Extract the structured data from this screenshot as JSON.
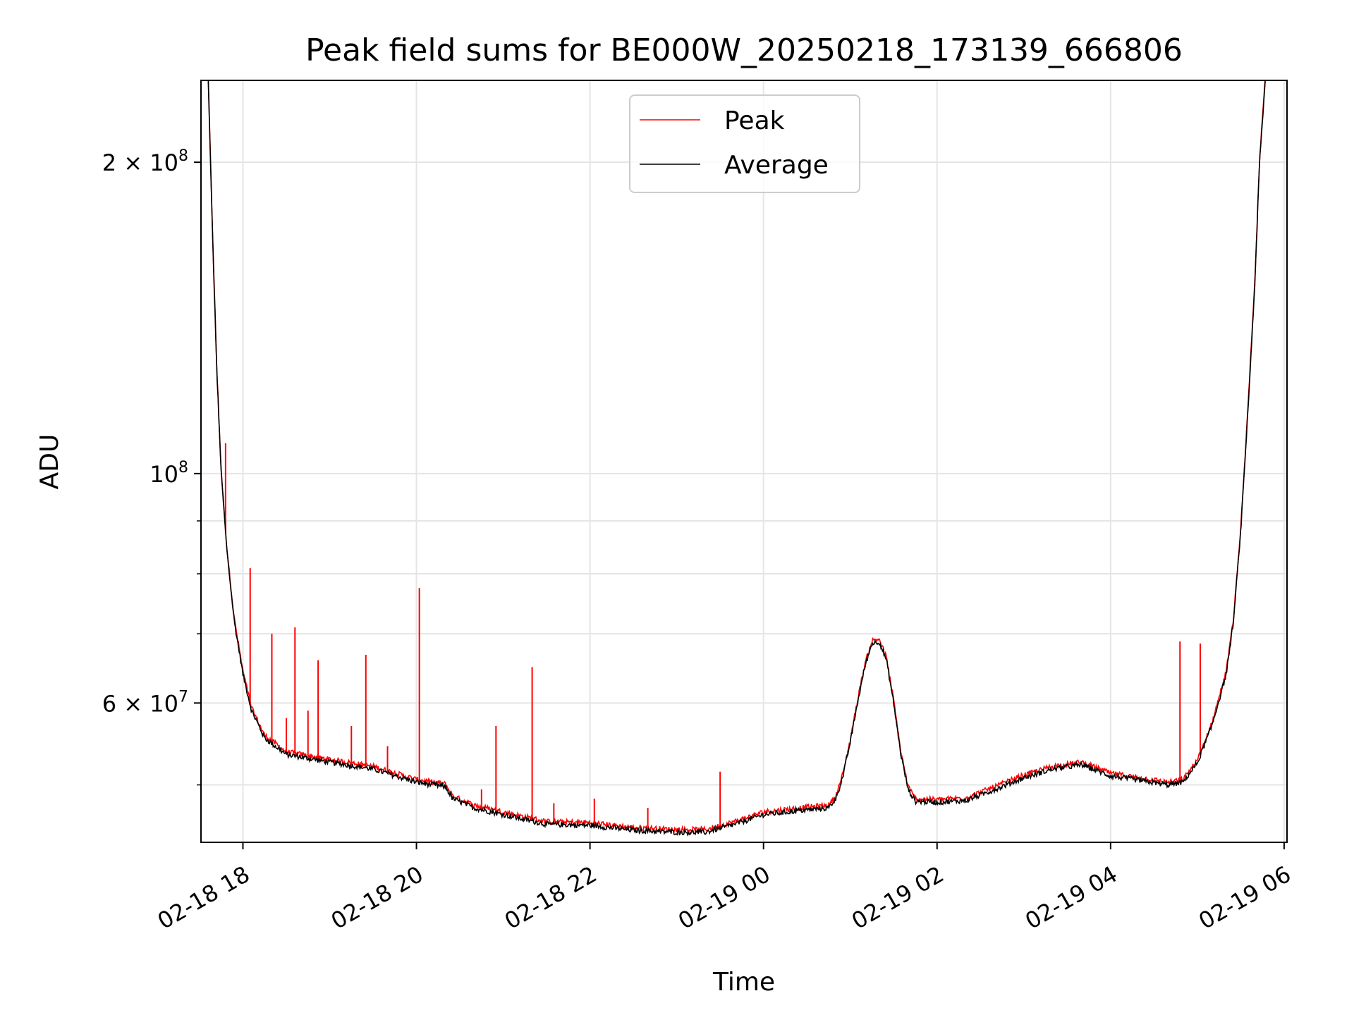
{
  "chart_data": {
    "type": "line",
    "title": "Peak field sums for BE000W_20250218_173139_666806",
    "xlabel": "Time",
    "ylabel": "ADU",
    "yscale": "log",
    "grid": true,
    "legend_placement": "upper center",
    "x_range": [
      "2025-02-18T17:31",
      "2025-02-19T06:02"
    ],
    "y_range": [
      44000000,
      240000000
    ],
    "x_ticks": [
      {
        "label": "02-18 18",
        "value": "2025-02-18T18:00"
      },
      {
        "label": "02-18 20",
        "value": "2025-02-18T20:00"
      },
      {
        "label": "02-18 22",
        "value": "2025-02-18T22:00"
      },
      {
        "label": "02-19 00",
        "value": "2025-02-19T00:00"
      },
      {
        "label": "02-19 02",
        "value": "2025-02-19T02:00"
      },
      {
        "label": "02-19 04",
        "value": "2025-02-19T04:00"
      },
      {
        "label": "02-19 06",
        "value": "2025-02-19T06:00"
      }
    ],
    "y_major_ticks": [
      {
        "value": 200000000,
        "base": "2 × 10",
        "exp": "8"
      },
      {
        "value": 100000000,
        "base": "10",
        "exp": "8"
      },
      {
        "value": 60000000,
        "base": "6 × 10",
        "exp": "7"
      }
    ],
    "y_minor_ticks": [
      50000000,
      70000000,
      80000000,
      90000000
    ],
    "series": [
      {
        "name": "Average",
        "color": "#000000",
        "points": [
          [
            "2025-02-18T17:36",
            240000000
          ],
          [
            "2025-02-18T17:39",
            170000000
          ],
          [
            "2025-02-18T17:42",
            125000000
          ],
          [
            "2025-02-18T17:45",
            100000000
          ],
          [
            "2025-02-18T17:49",
            84000000
          ],
          [
            "2025-02-18T17:54",
            72000000
          ],
          [
            "2025-02-18T18:00",
            64000000
          ],
          [
            "2025-02-18T18:06",
            59000000
          ],
          [
            "2025-02-18T18:15",
            55500000
          ],
          [
            "2025-02-18T18:30",
            53500000
          ],
          [
            "2025-02-18T19:00",
            52600000
          ],
          [
            "2025-02-18T19:30",
            51800000
          ],
          [
            "2025-02-18T20:00",
            50300000
          ],
          [
            "2025-02-18T20:20",
            49800000
          ],
          [
            "2025-02-18T20:25",
            48500000
          ],
          [
            "2025-02-18T20:40",
            47500000
          ],
          [
            "2025-02-18T21:00",
            46800000
          ],
          [
            "2025-02-18T21:30",
            45800000
          ],
          [
            "2025-02-18T22:00",
            45700000
          ],
          [
            "2025-02-18T22:30",
            45200000
          ],
          [
            "2025-02-18T23:00",
            45000000
          ],
          [
            "2025-02-18T23:20",
            45000000
          ],
          [
            "2025-02-18T23:40",
            45800000
          ],
          [
            "2025-02-19T00:00",
            46800000
          ],
          [
            "2025-02-19T00:30",
            47300000
          ],
          [
            "2025-02-19T00:45",
            47500000
          ],
          [
            "2025-02-19T00:50",
            48500000
          ],
          [
            "2025-02-19T00:55",
            51000000
          ],
          [
            "2025-02-19T01:00",
            55000000
          ],
          [
            "2025-02-19T01:05",
            60000000
          ],
          [
            "2025-02-19T01:10",
            65000000
          ],
          [
            "2025-02-19T01:15",
            68500000
          ],
          [
            "2025-02-19T01:20",
            68800000
          ],
          [
            "2025-02-19T01:25",
            66000000
          ],
          [
            "2025-02-19T01:30",
            60000000
          ],
          [
            "2025-02-19T01:35",
            53500000
          ],
          [
            "2025-02-19T01:40",
            49500000
          ],
          [
            "2025-02-19T01:45",
            48200000
          ],
          [
            "2025-02-19T02:00",
            48100000
          ],
          [
            "2025-02-19T02:20",
            48300000
          ],
          [
            "2025-02-19T02:40",
            49500000
          ],
          [
            "2025-02-19T03:00",
            50800000
          ],
          [
            "2025-02-19T03:20",
            51800000
          ],
          [
            "2025-02-19T03:40",
            52300000
          ],
          [
            "2025-02-19T04:00",
            51000000
          ],
          [
            "2025-02-19T04:20",
            50500000
          ],
          [
            "2025-02-19T04:40",
            50000000
          ],
          [
            "2025-02-19T04:50",
            50300000
          ],
          [
            "2025-02-19T05:00",
            52500000
          ],
          [
            "2025-02-19T05:10",
            57000000
          ],
          [
            "2025-02-19T05:20",
            64000000
          ],
          [
            "2025-02-19T05:25",
            72000000
          ],
          [
            "2025-02-19T05:30",
            88000000
          ],
          [
            "2025-02-19T05:35",
            115000000
          ],
          [
            "2025-02-19T05:40",
            155000000
          ],
          [
            "2025-02-19T05:43",
            200000000
          ],
          [
            "2025-02-19T05:47",
            240000000
          ]
        ]
      },
      {
        "name": "Peak",
        "color": "#ff0000",
        "spikes": [
          [
            "2025-02-18T17:48",
            107000000
          ],
          [
            "2025-02-18T18:05",
            81000000
          ],
          [
            "2025-02-18T18:20",
            70000000
          ],
          [
            "2025-02-18T18:30",
            58000000
          ],
          [
            "2025-02-18T18:36",
            71000000
          ],
          [
            "2025-02-18T18:45",
            59000000
          ],
          [
            "2025-02-18T18:52",
            66000000
          ],
          [
            "2025-02-18T19:15",
            57000000
          ],
          [
            "2025-02-18T19:25",
            66800000
          ],
          [
            "2025-02-18T19:40",
            54500000
          ],
          [
            "2025-02-18T20:02",
            77500000
          ],
          [
            "2025-02-18T20:45",
            49500000
          ],
          [
            "2025-02-18T20:55",
            57000000
          ],
          [
            "2025-02-18T21:20",
            65000000
          ],
          [
            "2025-02-18T21:35",
            48000000
          ],
          [
            "2025-02-18T22:03",
            48500000
          ],
          [
            "2025-02-18T22:40",
            47500000
          ],
          [
            "2025-02-18T23:30",
            51500000
          ],
          [
            "2025-02-19T04:48",
            68800000
          ],
          [
            "2025-02-19T05:02",
            68500000
          ]
        ]
      }
    ]
  }
}
